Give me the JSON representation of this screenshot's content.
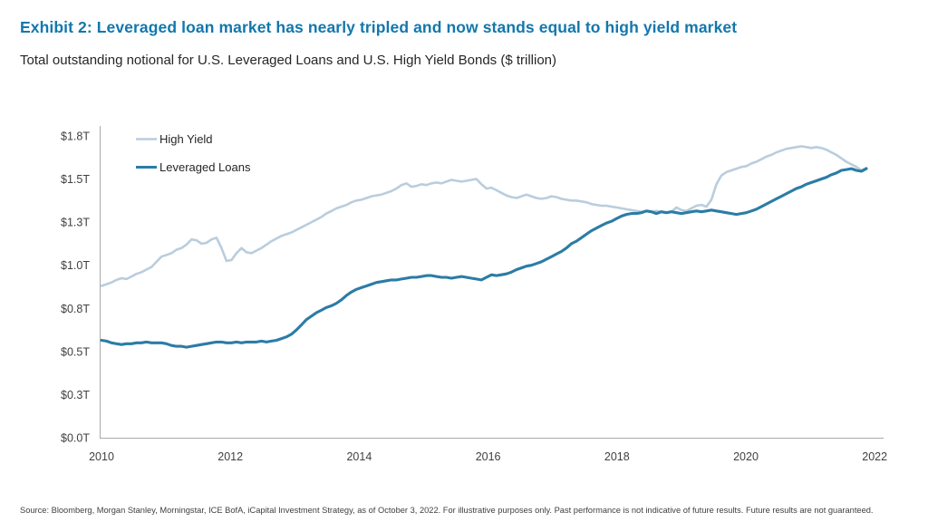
{
  "exhibit": {
    "title": "Exhibit 2: Leveraged loan market has nearly tripled and now stands equal to high yield market",
    "subtitle": "Total outstanding notional for U.S. Leveraged Loans and U.S. High Yield Bonds ($ trillion)",
    "source": "Source: Bloomberg, Morgan Stanley, Morningstar, ICE BofA, iCapital Investment Strategy, as of October 3, 2022. For illustrative purposes only. Past performance is not indicative of future results. Future results are not guaranteed."
  },
  "colors": {
    "title_blue": "#1377ad",
    "high_yield_line": "#b9cdde",
    "leveraged_loans_line": "#2b7ca6",
    "axis_gray": "#a9a9a9",
    "tick_text": "#404040",
    "body_text": "#262626",
    "background": "#ffffff"
  },
  "chart_data": {
    "type": "line",
    "title": "Total outstanding notional for U.S. Leveraged Loans and U.S. High Yield Bonds",
    "unit": "$ trillion",
    "x_range": {
      "start": "2010-01",
      "end": "2022-10",
      "frequency": "monthly",
      "points": 154
    },
    "ylim": [
      0,
      1.75
    ],
    "grid": false,
    "legend_position": "top-left-inside",
    "y_ticks": [
      {
        "value": 0.0,
        "label": "$0.0T"
      },
      {
        "value": 0.25,
        "label": "$0.3T"
      },
      {
        "value": 0.5,
        "label": "$0.5T"
      },
      {
        "value": 0.75,
        "label": "$0.8T"
      },
      {
        "value": 1.0,
        "label": "$1.0T"
      },
      {
        "value": 1.25,
        "label": "$1.3T"
      },
      {
        "value": 1.5,
        "label": "$1.5T"
      },
      {
        "value": 1.75,
        "label": "$1.8T"
      }
    ],
    "x_ticks": [
      {
        "year": 2010,
        "label": "2010"
      },
      {
        "year": 2012,
        "label": "2012"
      },
      {
        "year": 2014,
        "label": "2014"
      },
      {
        "year": 2016,
        "label": "2016"
      },
      {
        "year": 2018,
        "label": "2018"
      },
      {
        "year": 2020,
        "label": "2020"
      },
      {
        "year": 2022,
        "label": "2022"
      }
    ],
    "series": [
      {
        "name": "High Yield",
        "color": "#b9cdde",
        "stroke_width": 2.6,
        "values": [
          0.88,
          0.89,
          0.9,
          0.915,
          0.925,
          0.92,
          0.935,
          0.95,
          0.96,
          0.975,
          0.99,
          1.02,
          1.05,
          1.06,
          1.07,
          1.09,
          1.1,
          1.12,
          1.15,
          1.145,
          1.125,
          1.13,
          1.15,
          1.16,
          1.1,
          1.025,
          1.03,
          1.07,
          1.1,
          1.075,
          1.07,
          1.085,
          1.1,
          1.12,
          1.14,
          1.155,
          1.17,
          1.18,
          1.19,
          1.205,
          1.22,
          1.235,
          1.25,
          1.265,
          1.28,
          1.3,
          1.315,
          1.33,
          1.34,
          1.35,
          1.365,
          1.375,
          1.38,
          1.39,
          1.4,
          1.405,
          1.41,
          1.42,
          1.43,
          1.445,
          1.465,
          1.475,
          1.455,
          1.46,
          1.47,
          1.465,
          1.475,
          1.48,
          1.475,
          1.485,
          1.495,
          1.49,
          1.485,
          1.49,
          1.495,
          1.5,
          1.47,
          1.445,
          1.45,
          1.435,
          1.42,
          1.405,
          1.395,
          1.39,
          1.4,
          1.41,
          1.4,
          1.39,
          1.385,
          1.39,
          1.4,
          1.395,
          1.385,
          1.38,
          1.375,
          1.375,
          1.37,
          1.365,
          1.355,
          1.35,
          1.345,
          1.345,
          1.34,
          1.335,
          1.33,
          1.325,
          1.32,
          1.315,
          1.31,
          1.315,
          1.31,
          1.315,
          1.31,
          1.305,
          1.31,
          1.335,
          1.32,
          1.315,
          1.33,
          1.345,
          1.35,
          1.34,
          1.38,
          1.47,
          1.52,
          1.54,
          1.55,
          1.56,
          1.57,
          1.575,
          1.59,
          1.6,
          1.615,
          1.63,
          1.64,
          1.655,
          1.665,
          1.675,
          1.68,
          1.685,
          1.69,
          1.685,
          1.68,
          1.685,
          1.68,
          1.67,
          1.655,
          1.64,
          1.62,
          1.6,
          1.585,
          1.57,
          1.55,
          1.565
        ]
      },
      {
        "name": "Leveraged Loans",
        "color": "#2b7ca6",
        "stroke_width": 3.1,
        "values": [
          0.565,
          0.56,
          0.55,
          0.545,
          0.54,
          0.545,
          0.545,
          0.55,
          0.55,
          0.555,
          0.55,
          0.55,
          0.55,
          0.545,
          0.535,
          0.53,
          0.53,
          0.525,
          0.53,
          0.535,
          0.54,
          0.545,
          0.55,
          0.555,
          0.555,
          0.55,
          0.55,
          0.555,
          0.55,
          0.555,
          0.555,
          0.555,
          0.56,
          0.555,
          0.56,
          0.565,
          0.575,
          0.585,
          0.6,
          0.625,
          0.655,
          0.685,
          0.705,
          0.725,
          0.74,
          0.755,
          0.765,
          0.78,
          0.8,
          0.825,
          0.845,
          0.86,
          0.87,
          0.88,
          0.89,
          0.9,
          0.905,
          0.91,
          0.915,
          0.915,
          0.92,
          0.925,
          0.93,
          0.93,
          0.935,
          0.94,
          0.94,
          0.935,
          0.93,
          0.93,
          0.925,
          0.93,
          0.935,
          0.93,
          0.925,
          0.92,
          0.915,
          0.93,
          0.945,
          0.94,
          0.945,
          0.95,
          0.96,
          0.975,
          0.985,
          0.995,
          1.0,
          1.01,
          1.02,
          1.035,
          1.05,
          1.065,
          1.08,
          1.1,
          1.125,
          1.14,
          1.16,
          1.18,
          1.2,
          1.215,
          1.23,
          1.245,
          1.255,
          1.27,
          1.285,
          1.295,
          1.3,
          1.3,
          1.305,
          1.315,
          1.31,
          1.3,
          1.31,
          1.305,
          1.31,
          1.305,
          1.3,
          1.305,
          1.31,
          1.315,
          1.31,
          1.315,
          1.32,
          1.315,
          1.31,
          1.305,
          1.3,
          1.295,
          1.3,
          1.305,
          1.315,
          1.325,
          1.34,
          1.355,
          1.37,
          1.385,
          1.4,
          1.415,
          1.43,
          1.445,
          1.455,
          1.47,
          1.48,
          1.49,
          1.5,
          1.51,
          1.525,
          1.535,
          1.55,
          1.555,
          1.56,
          1.55,
          1.545,
          1.56
        ]
      }
    ]
  }
}
